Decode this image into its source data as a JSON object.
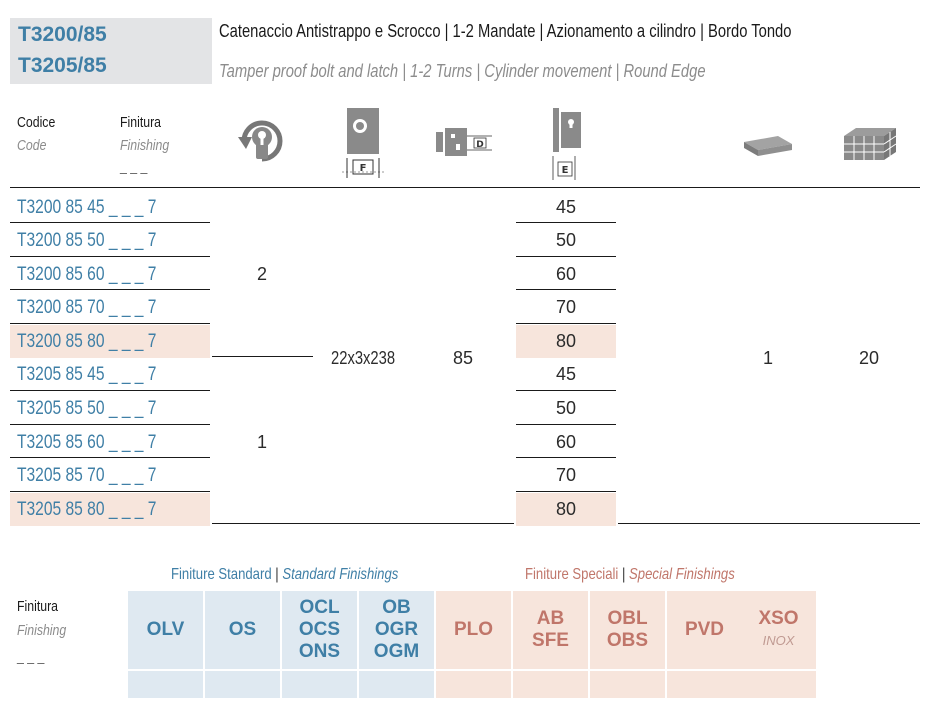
{
  "header": {
    "code_line1": "T3200/85",
    "code_line2": "T3205/85",
    "title_it": "Catenaccio Antistrappo e Scrocco | 1-2 Mandate | Azionamento a cilindro | Bordo Tondo",
    "title_en": "Tamper proof bolt and latch | 1-2 Turns | Cylinder movement | Round Edge"
  },
  "columns": {
    "code_it": "Codice",
    "code_en": "Code",
    "finish_it": "Finitura",
    "finish_en": "Finishing",
    "finish_blank": "_ _ _",
    "icons": {
      "turns": "cylinder-turns-icon",
      "faceplate": "faceplate-F-icon",
      "distance": "distance-D-icon",
      "backset": "backset-E-icon",
      "pack": "single-pack-icon",
      "box": "box-quantity-icon"
    },
    "icon_letters": {
      "F": "F",
      "D": "D",
      "E": "E"
    }
  },
  "rows": [
    {
      "code": "T3200 85 45 _ _ _ 7",
      "e": "45",
      "highlight": false
    },
    {
      "code": "T3200 85 50 _ _ _ 7",
      "e": "50",
      "highlight": false
    },
    {
      "code": "T3200 85 60 _ _ _ 7",
      "e": "60",
      "highlight": false
    },
    {
      "code": "T3200 85 70 _ _ _ 7",
      "e": "70",
      "highlight": false
    },
    {
      "code": "T3200 85 80 _ _ _ 7",
      "e": "80",
      "highlight": true
    },
    {
      "code": "T3205 85 45 _ _ _ 7",
      "e": "45",
      "highlight": false
    },
    {
      "code": "T3205 85 50 _ _ _ 7",
      "e": "50",
      "highlight": false
    },
    {
      "code": "T3205 85 60 _ _ _ 7",
      "e": "60",
      "highlight": false
    },
    {
      "code": "T3205 85 70 _ _ _ 7",
      "e": "70",
      "highlight": false
    },
    {
      "code": "T3205 85 80 _ _ _ 7",
      "e": "80",
      "highlight": true
    }
  ],
  "shared_values": {
    "turns_group1": "2",
    "turns_group2": "1",
    "faceplate": "22x3x238",
    "distance": "85",
    "pack": "1",
    "box": "20"
  },
  "finishings": {
    "label_it": "Finitura",
    "label_en": "Finishing",
    "label_blank": "_ _ _",
    "standard_it": "Finiture Standard",
    "standard_en": "Standard Finishings",
    "special_it": "Finiture Speciali",
    "special_en": "Special Finishings",
    "separator": "|",
    "standard": [
      [
        "OLV"
      ],
      [
        "OS"
      ],
      [
        "OCL",
        "OCS",
        "ONS"
      ],
      [
        "OB",
        "OGR",
        "OGM"
      ]
    ],
    "special": [
      [
        "PLO"
      ],
      [
        "AB",
        "SFE"
      ],
      [
        "OBL",
        "OBS"
      ],
      [
        "PVD"
      ],
      [
        "XSO"
      ]
    ],
    "special_note": "INOX"
  },
  "colors": {
    "accent_blue": "#3f7fa6",
    "accent_red": "#c0766a",
    "highlight": "#f7e5dc",
    "standard_bg": "#dfe9f1"
  }
}
